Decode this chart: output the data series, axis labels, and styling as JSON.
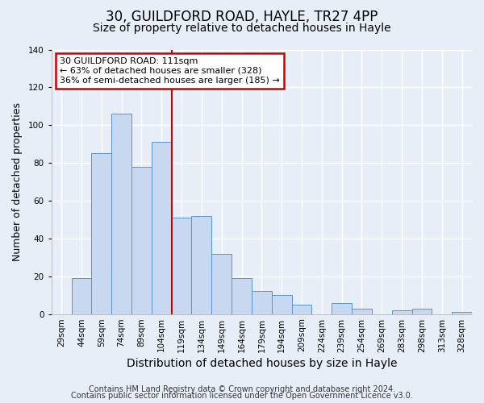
{
  "title": "30, GUILDFORD ROAD, HAYLE, TR27 4PP",
  "subtitle": "Size of property relative to detached houses in Hayle",
  "xlabel": "Distribution of detached houses by size in Hayle",
  "ylabel": "Number of detached properties",
  "bar_labels": [
    "29sqm",
    "44sqm",
    "59sqm",
    "74sqm",
    "89sqm",
    "104sqm",
    "119sqm",
    "134sqm",
    "149sqm",
    "164sqm",
    "179sqm",
    "194sqm",
    "209sqm",
    "224sqm",
    "239sqm",
    "254sqm",
    "269sqm",
    "283sqm",
    "298sqm",
    "313sqm",
    "328sqm"
  ],
  "bar_values": [
    0,
    19,
    85,
    106,
    78,
    91,
    51,
    52,
    32,
    19,
    12,
    10,
    5,
    0,
    6,
    3,
    0,
    2,
    3,
    0,
    1
  ],
  "bar_color": "#c8d8f0",
  "bar_edge_color": "#5a96cc",
  "vline_x": 6.0,
  "vline_color": "#cc0000",
  "annotation_title": "30 GUILDFORD ROAD: 111sqm",
  "annotation_line1": "← 63% of detached houses are smaller (328)",
  "annotation_line2": "36% of semi-detached houses are larger (185) →",
  "annotation_box_facecolor": "#ffffff",
  "annotation_box_edgecolor": "#cc0000",
  "ylim": [
    0,
    140
  ],
  "yticks": [
    0,
    20,
    40,
    60,
    80,
    100,
    120,
    140
  ],
  "footer1": "Contains HM Land Registry data © Crown copyright and database right 2024.",
  "footer2": "Contains public sector information licensed under the Open Government Licence v3.0.",
  "fig_facecolor": "#e8eef8",
  "axes_facecolor": "#e8eef8",
  "grid_color": "#ffffff",
  "title_fontsize": 12,
  "subtitle_fontsize": 10,
  "xlabel_fontsize": 10,
  "ylabel_fontsize": 9,
  "tick_fontsize": 7.5,
  "annot_fontsize": 8,
  "footer_fontsize": 7
}
